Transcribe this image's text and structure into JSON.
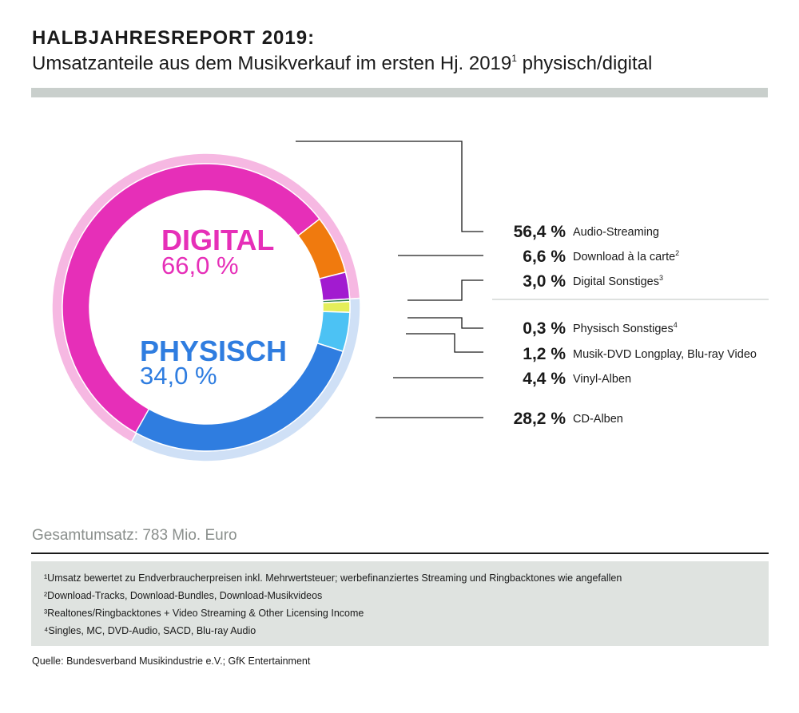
{
  "header": {
    "title": "HALBJAHRESREPORT 2019:",
    "subtitle": "Umsatzanteile aus dem Musikverkauf im ersten Hj. 2019",
    "subtitle_sup": "1",
    "subtitle_suffix": " physisch/digital"
  },
  "chart_data": {
    "type": "pie",
    "groups": [
      {
        "name": "DIGITAL",
        "value_label": "66,0 %",
        "value": 66.0,
        "color": "#e62fb8",
        "ring_color": "#f6b8e2"
      },
      {
        "name": "PHYSISCH",
        "value_label": "34,0 %",
        "value": 34.0,
        "color": "#2f7de0",
        "ring_color": "#cfe0f6"
      }
    ],
    "segments": [
      {
        "group": "DIGITAL",
        "pct_label": "56,4 %",
        "name": "Audio-Streaming",
        "sup": "",
        "value": 56.4,
        "color": "#e62fb8"
      },
      {
        "group": "DIGITAL",
        "pct_label": "6,6 %",
        "name": "Download à la carte",
        "sup": "2",
        "value": 6.6,
        "color": "#f07a0e"
      },
      {
        "group": "DIGITAL",
        "pct_label": "3,0 %",
        "name": "Digital Sonstiges",
        "sup": "3",
        "value": 3.0,
        "color": "#a21bd0"
      },
      {
        "group": "PHYSISCH",
        "pct_label": "0,3 %",
        "name": "Physisch Sonstiges",
        "sup": "4",
        "value": 0.3,
        "color": "#2e7d4b"
      },
      {
        "group": "PHYSISCH",
        "pct_label": "1,2 %",
        "name": "Musik-DVD Longplay, Blu-ray Video",
        "sup": "",
        "value": 1.2,
        "color": "#e4ee5a"
      },
      {
        "group": "PHYSISCH",
        "pct_label": "4,4 %",
        "name": "Vinyl-Alben",
        "sup": "",
        "value": 4.4,
        "color": "#4cc2f4"
      },
      {
        "group": "PHYSISCH",
        "pct_label": "28,2 %",
        "name": "CD-Alben",
        "sup": "",
        "value": 28.2,
        "color": "#2f7de0"
      }
    ]
  },
  "total": "Gesamtumsatz: 783 Mio. Euro",
  "footnotes": [
    "¹Umsatz bewertet zu Endverbraucherpreisen inkl. Mehrwertsteuer; werbefinanziertes Streaming und Ringbacktones wie angefallen",
    "²Download-Tracks, Download-Bundles, Download-Musikvideos",
    "³Realtones/Ringbacktones + Video Streaming & Other Licensing Income",
    "⁴Singles, MC, DVD-Audio, SACD, Blu-ray Audio"
  ],
  "source": "Quelle: Bundesverband Musikindustrie e.V.; GfK Entertainment"
}
